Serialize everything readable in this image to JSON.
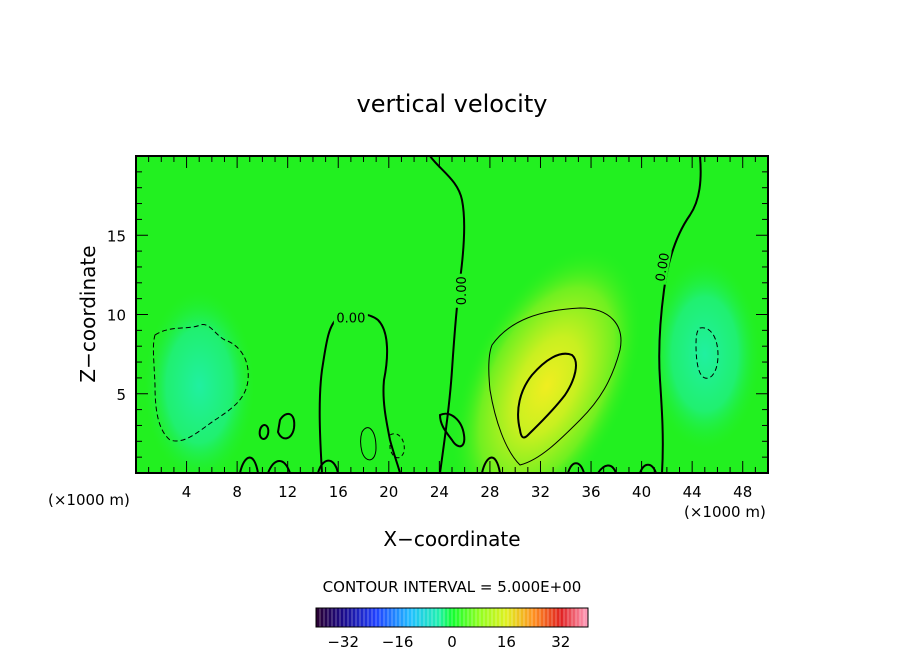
{
  "chart_data": {
    "type": "heatmap",
    "title": "vertical velocity",
    "xlabel": "X−coordinate",
    "ylabel": "Z−coordinate",
    "x_scale_label_left": "(×1000 m)",
    "x_scale_label_right": "(×1000 m)",
    "xlim": [
      0,
      50
    ],
    "ylim": [
      0,
      20
    ],
    "x_ticks": [
      4,
      8,
      12,
      16,
      20,
      24,
      28,
      32,
      36,
      40,
      44,
      48
    ],
    "y_ticks": [
      5,
      10,
      15
    ],
    "contour_interval_text": "CONTOUR INTERVAL = 5.000E+00",
    "contour_interval": 5.0,
    "contour_labels": [
      {
        "text": "0.00",
        "x": 17.0,
        "y": 9.8,
        "angle": 0
      },
      {
        "text": "0.00",
        "x": 25.7,
        "y": 11.5,
        "angle": -90
      },
      {
        "text": "0.00",
        "x": 41.6,
        "y": 13.0,
        "angle": -80
      }
    ],
    "colorbar": {
      "range": [
        -40,
        40
      ],
      "ticks": [
        -32,
        -16,
        0,
        16,
        32
      ],
      "colormap": "rainbow"
    },
    "features": [
      {
        "kind": "updraft",
        "x": 32.5,
        "z": 5.5,
        "peak": 12
      },
      {
        "kind": "downdraft",
        "x": 5.0,
        "z": 5.5,
        "peak": -6
      },
      {
        "kind": "downdraft",
        "x": 45.0,
        "z": 7.5,
        "peak": -5
      }
    ]
  }
}
